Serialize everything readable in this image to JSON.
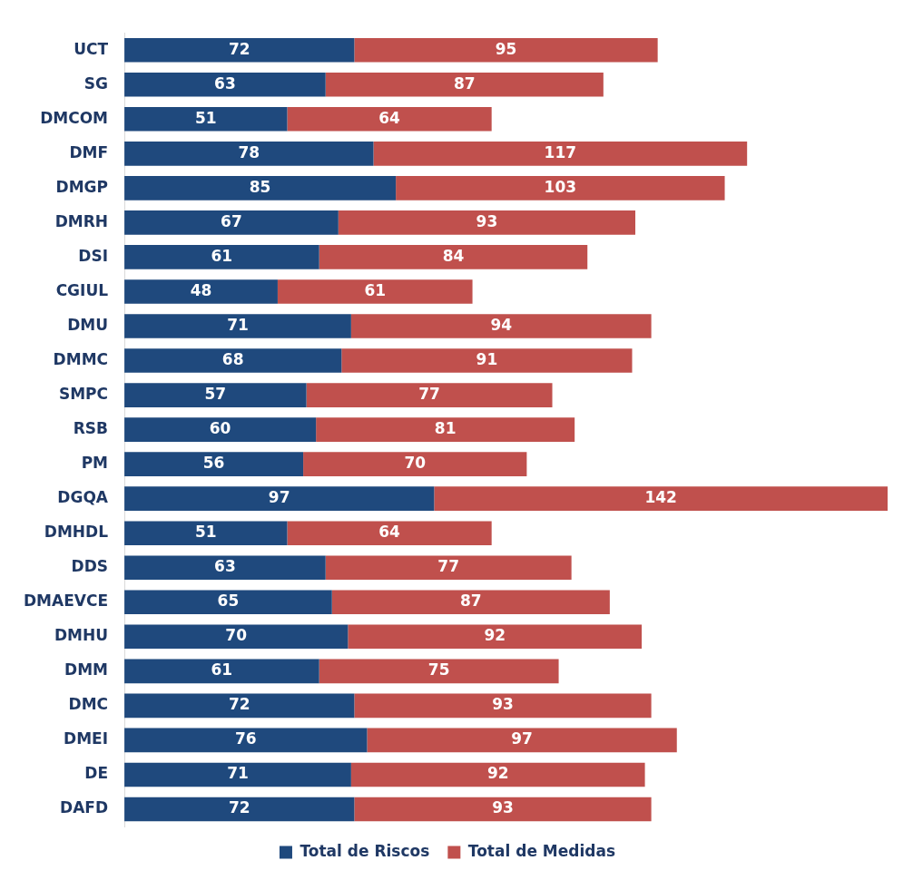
{
  "chart_data": {
    "type": "bar",
    "orientation": "horizontal",
    "stacked": true,
    "data_labels": true,
    "grid": false,
    "legend": "bottom",
    "tick_labels": "y",
    "categories": [
      "UCT",
      "SG",
      "DMCOM",
      "DMF",
      "DMGP",
      "DMRH",
      "DSI",
      "CGIUL",
      "DMU",
      "DMMC",
      "SMPC",
      "RSB",
      "PM",
      "DGQA",
      "DMHDL",
      "DDS",
      "DMAEVCE",
      "DMHU",
      "DMM",
      "DMC",
      "DMEI",
      "DE",
      "DAFD"
    ],
    "series": [
      {
        "name": "Total de Riscos",
        "color": "#1f497d",
        "values": [
          72,
          63,
          51,
          78,
          85,
          67,
          61,
          48,
          71,
          68,
          57,
          60,
          56,
          97,
          51,
          63,
          65,
          70,
          61,
          72,
          76,
          71,
          72
        ]
      },
      {
        "name": "Total de Medidas",
        "color": "#c0504d",
        "values": [
          95,
          87,
          64,
          117,
          103,
          93,
          84,
          61,
          94,
          91,
          77,
          81,
          70,
          142,
          64,
          77,
          87,
          92,
          75,
          93,
          97,
          92,
          93
        ]
      }
    ]
  }
}
